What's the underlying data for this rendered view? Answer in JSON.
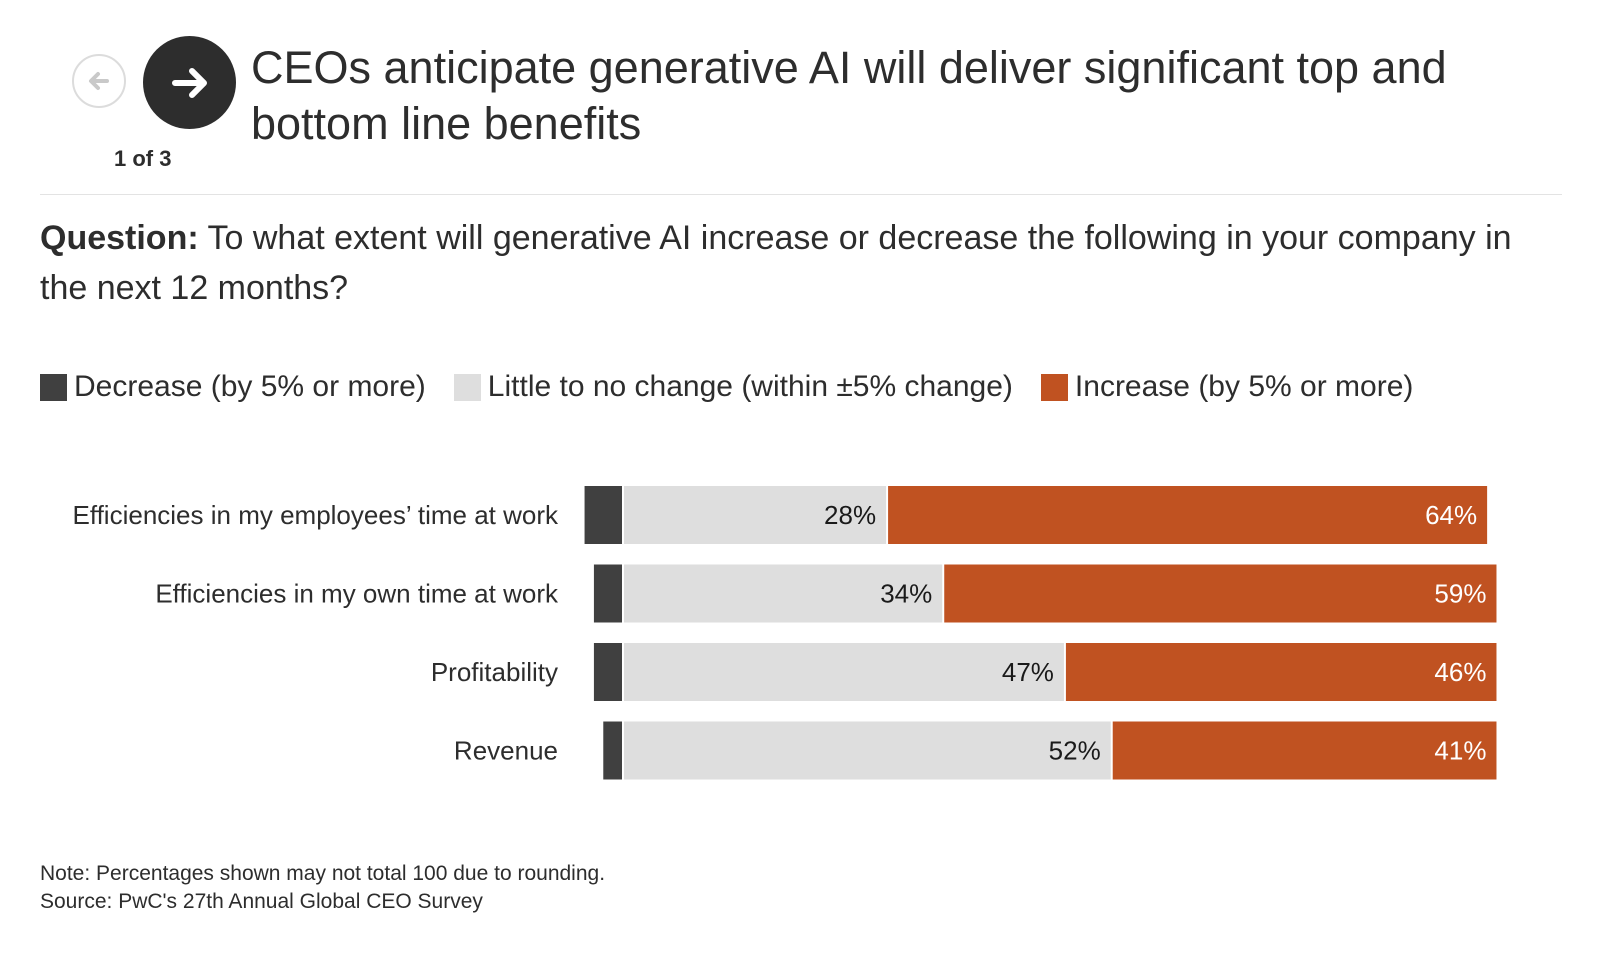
{
  "nav": {
    "counter": "1 of 3",
    "prev_icon": "arrow-left-icon",
    "next_icon": "arrow-right-icon"
  },
  "title": "CEOs anticipate generative AI will deliver significant top and bottom line benefits",
  "question": {
    "label": "Question:",
    "text": "To what extent will generative AI increase or decrease the following in your company in the next 12 months?"
  },
  "legend": [
    {
      "label": "Decrease (by 5% or more)",
      "color": "#404040"
    },
    {
      "label": "Little to no change (within ±5% change)",
      "color": "#dedede"
    },
    {
      "label": "Increase (by 5% or more)",
      "color": "#c05221"
    }
  ],
  "chart_data": {
    "type": "bar",
    "orientation": "horizontal",
    "stacked": true,
    "categories": [
      "Efficiencies in my employees’ time at work",
      "Efficiencies in my own time at work",
      "Profitability",
      "Revenue"
    ],
    "series": [
      {
        "name": "Decrease (by 5% or more)",
        "values": [
          4,
          3,
          3,
          2
        ],
        "color": "#404040",
        "labels": [
          "",
          "",
          "",
          ""
        ]
      },
      {
        "name": "Little to no change (within ±5% change)",
        "values": [
          28,
          34,
          47,
          52
        ],
        "color": "#dedede",
        "labels": [
          "28%",
          "34%",
          "47%",
          "52%"
        ]
      },
      {
        "name": "Increase (by 5% or more)",
        "values": [
          64,
          59,
          46,
          41
        ],
        "color": "#c05221",
        "labels": [
          "64%",
          "59%",
          "46%",
          "41%"
        ]
      }
    ],
    "decrease_side": "left",
    "legend_position": "top",
    "grid": false
  },
  "footer": {
    "note": "Note: Percentages shown may not total 100 due to rounding.",
    "source": "Source: PwC's 27th Annual Global CEO Survey"
  }
}
